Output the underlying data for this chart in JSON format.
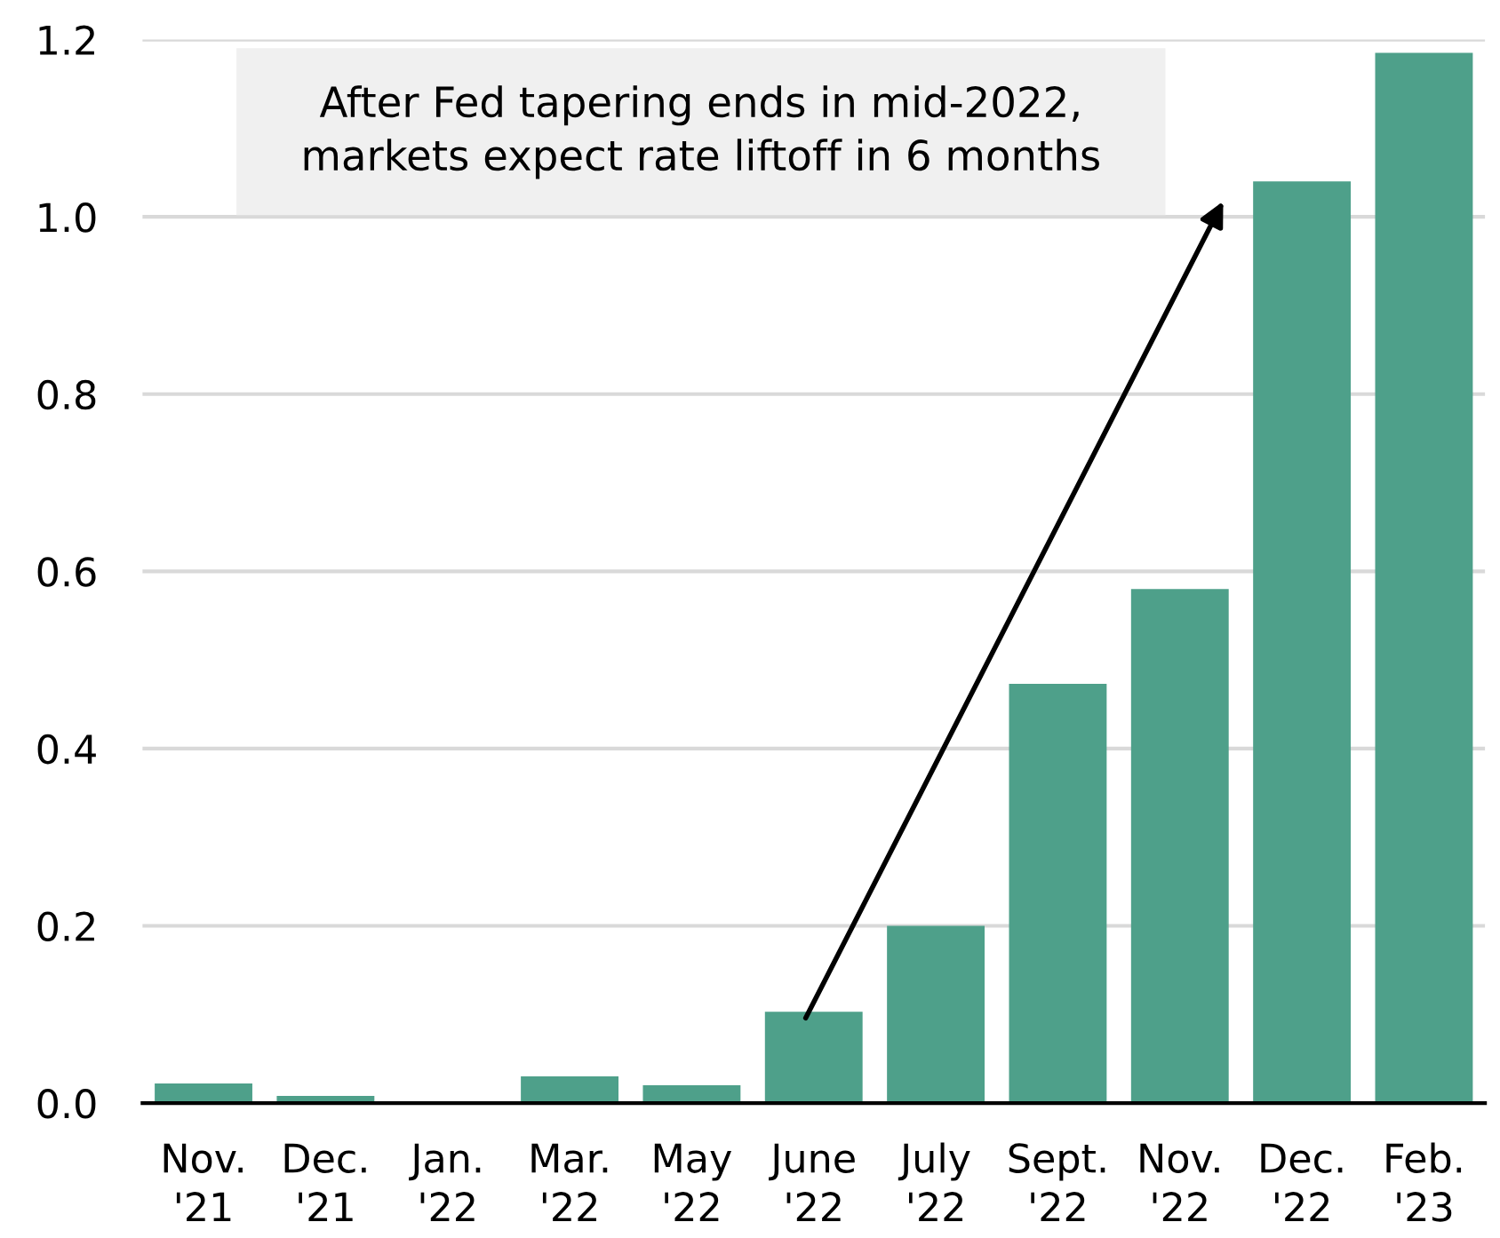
{
  "chart_data": {
    "type": "bar",
    "categories": [
      "Nov.\n'21",
      "Dec.\n'21",
      "Jan.\n'22",
      "Mar.\n'22",
      "May\n'22",
      "June\n'22",
      "July\n'22",
      "Sept.\n'22",
      "Nov.\n'22",
      "Dec.\n'22",
      "Feb.\n'23"
    ],
    "values": [
      0.022,
      0.008,
      0,
      0.03,
      0.02,
      0.103,
      0.2,
      0.473,
      0.58,
      1.04,
      1.185
    ],
    "color": "#4ea08a",
    "ylim": [
      0,
      1.2
    ],
    "yticks": [
      {
        "value": 0,
        "label": "0.0"
      },
      0.2,
      0.4,
      0.6,
      0.8,
      {
        "value": 1,
        "label": "1.0"
      },
      1.2
    ],
    "grid": "y",
    "annotations": [
      "After Fed tapering ends in mid-2022,\nmarkets expect rate liftoff in 6 months"
    ]
  }
}
